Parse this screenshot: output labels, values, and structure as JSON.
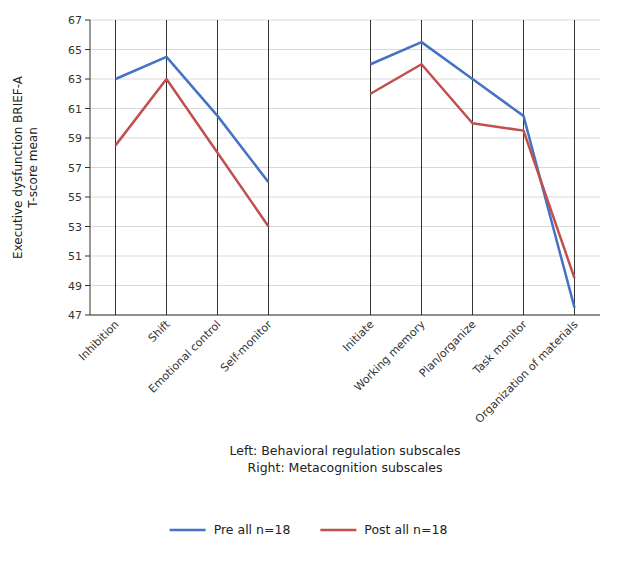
{
  "chart_data": {
    "type": "line",
    "y_label": "Executive dysfunction BRIEF-A\nT-score mean",
    "x_label": "Left: Behavioral regulation subscales\nRight: Metacognition subscales",
    "categories": [
      "Inhibition",
      "Shift",
      "Emotional control",
      "Self-monitor",
      null,
      "Initiate",
      "Working memory",
      "Plan/organize",
      "Task monitor",
      "Organization of materials"
    ],
    "series": [
      {
        "name": "Pre all n=18",
        "color": "#4472C4",
        "values": [
          63,
          64.5,
          60.5,
          56,
          null,
          64,
          65.5,
          63,
          60.5,
          47.5
        ]
      },
      {
        "name": "Post all n=18",
        "color": "#C0504D",
        "values": [
          58.5,
          63,
          58,
          53,
          null,
          62,
          64,
          60,
          59.5,
          49.5
        ]
      }
    ],
    "ylim": [
      47,
      67
    ],
    "yticks": [
      47,
      49,
      51,
      53,
      55,
      57,
      59,
      61,
      63,
      65,
      67
    ],
    "grid": true,
    "legend": "bottom"
  }
}
